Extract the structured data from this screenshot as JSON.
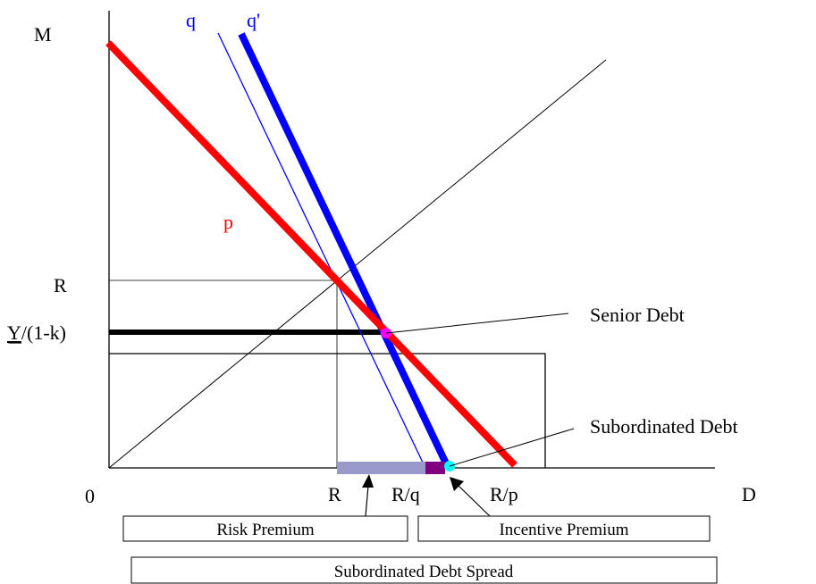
{
  "diagram": {
    "axes": {
      "y_axis_label": "M",
      "x_axis_label": "D",
      "origin_label": "0"
    },
    "y_ticks": {
      "r": "R",
      "y_over_1_minus_k_underlined": "Y",
      "y_over_1_minus_k_rest": "/(1-k)"
    },
    "x_ticks": {
      "r": "R",
      "r_over_q": "R/q",
      "r_over_p": "R/p"
    },
    "lines": {
      "p": {
        "label": "p",
        "color": "#ff0000"
      },
      "q": {
        "label": "q",
        "color": "#0000ff"
      },
      "q_prime": {
        "label": "q'",
        "color": "#0000ff"
      }
    },
    "callouts": {
      "senior_debt": "Senior Debt",
      "subordinated_debt": "Subordinated Debt"
    },
    "boxes": {
      "risk_premium": "Risk Premium",
      "incentive_premium": "Incentive Premium",
      "spread": "Subordinated Debt Spread"
    },
    "colors": {
      "senior_dot": "#ff00ff",
      "subordinated_dot": "#00ffff",
      "risk_bar": "#9999cc",
      "incentive_bar": "#800080",
      "senior_line": "#000000"
    }
  }
}
